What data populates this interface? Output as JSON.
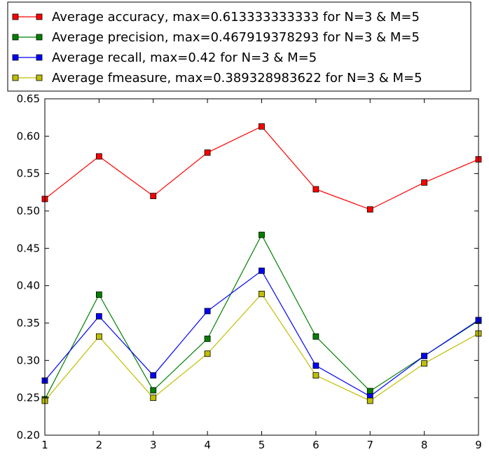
{
  "chart_data": {
    "type": "line",
    "title": "",
    "xlabel": "",
    "ylabel": "",
    "x": [
      1,
      2,
      3,
      4,
      5,
      6,
      7,
      8,
      9
    ],
    "xlim": [
      1,
      9
    ],
    "ylim": [
      0.2,
      0.65
    ],
    "x_ticks": [
      "1",
      "2",
      "3",
      "4",
      "5",
      "6",
      "7",
      "8",
      "9"
    ],
    "y_ticks": [
      "0.20",
      "0.25",
      "0.30",
      "0.35",
      "0.40",
      "0.45",
      "0.50",
      "0.55",
      "0.60",
      "0.65"
    ],
    "grid": false,
    "legend_position": "top, outside plot",
    "series": [
      {
        "name": "Average accuracy, max=0.613333333333 for N=3 & M=5",
        "color": "#ff0000",
        "marker": "square",
        "values": [
          0.516,
          0.573,
          0.52,
          0.578,
          0.613,
          0.529,
          0.502,
          0.538,
          0.569
        ]
      },
      {
        "name": "Average precision, max=0.467919378293 for N=3 & M=5",
        "color": "#008000",
        "marker": "square",
        "values": [
          0.248,
          0.388,
          0.26,
          0.329,
          0.468,
          0.332,
          0.259,
          0.306,
          0.353
        ]
      },
      {
        "name": "Average recall, max=0.42 for N=3 & M=5",
        "color": "#0000ff",
        "marker": "square",
        "values": [
          0.273,
          0.359,
          0.28,
          0.366,
          0.42,
          0.293,
          0.252,
          0.306,
          0.354
        ]
      },
      {
        "name": "Average fmeasure, max=0.389328983622 for N=3 & M=5",
        "color": "#bfbf00",
        "marker": "square",
        "values": [
          0.246,
          0.332,
          0.25,
          0.309,
          0.389,
          0.28,
          0.246,
          0.296,
          0.336
        ]
      }
    ]
  }
}
